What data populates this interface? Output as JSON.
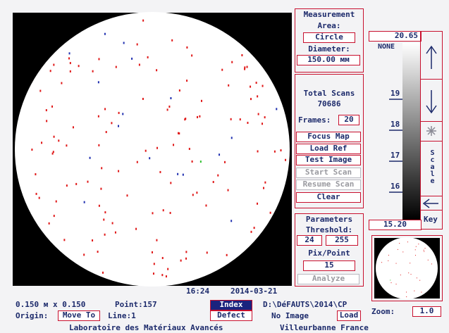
{
  "measurement": {
    "title": "Measurement",
    "area_label": "Area:",
    "area": "Circle",
    "diameter_label": "Diameter:",
    "diameter": "150.00 мм"
  },
  "scans": {
    "label": "Total Scans",
    "value": "70686",
    "frames_label": "Frames:",
    "frames": "20"
  },
  "buttons": [
    "Focus Map",
    "Load Ref",
    "Test Image",
    "Start Scan",
    "Resume Scan",
    "Clear"
  ],
  "parameters": {
    "title": "Parameters",
    "threshold_label": "Threshold:",
    "threshold_low": "24",
    "threshold_high": "255",
    "pix_label": "Pix/Point",
    "pix": "15",
    "analyze": "Analyze"
  },
  "scale": {
    "max": "20.65",
    "none": "NONE",
    "ticks": [
      "19",
      "18",
      "17",
      "16"
    ],
    "min": "15.20",
    "scale_label": "Scale",
    "key": "Key"
  },
  "status": {
    "time": "16:24",
    "date": "2014-03-21",
    "size": "0.150 м x 0.150",
    "point": "Point:157",
    "origin_label": "Origin:",
    "move_to": "Move To",
    "line": "Line:1",
    "index": "Index",
    "defect": "Defect",
    "path": "D:\\DéFAUTS\\2014\\CP",
    "image": "No Image",
    "load": "Load",
    "zoom_label": "Zoom:",
    "zoom": "1.0"
  },
  "footer": {
    "lab": "Laboratoire des Matériaux Avancés",
    "city": "Villeurbanne France"
  }
}
